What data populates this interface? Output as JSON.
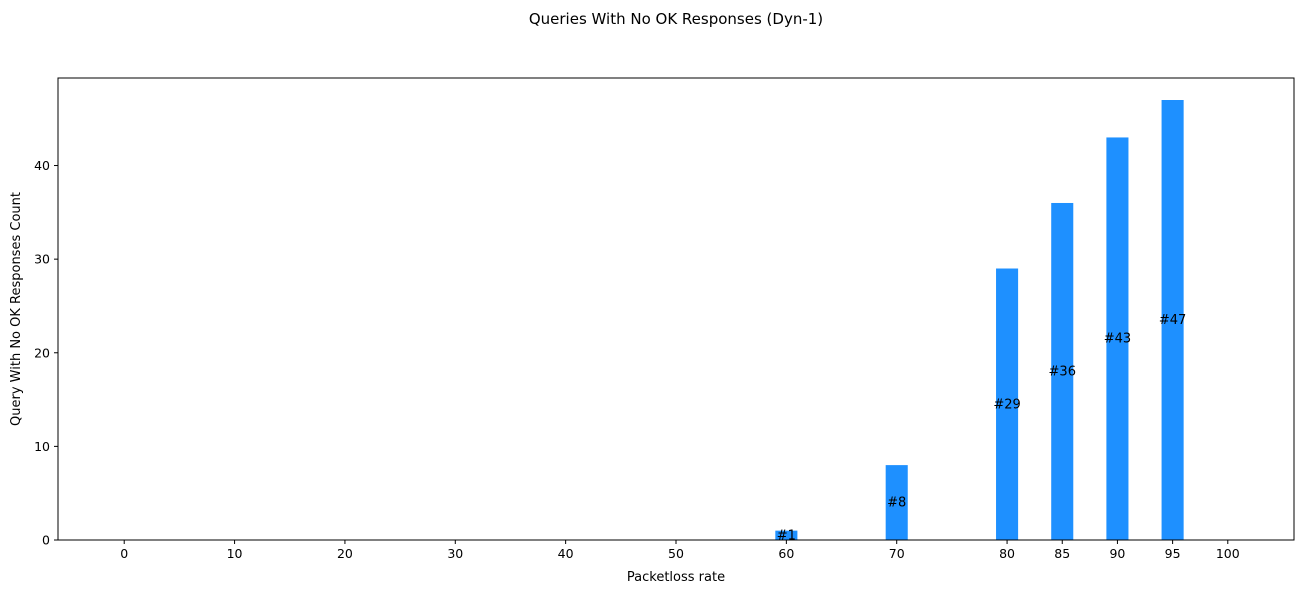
{
  "chart_data": {
    "type": "bar",
    "title": "Queries With No OK Responses (Dyn-1)",
    "xlabel": "Packetloss rate",
    "ylabel": "Query With No OK Responses Count",
    "categories": [
      "0",
      "10",
      "20",
      "30",
      "40",
      "50",
      "60",
      "70",
      "80",
      "85",
      "90",
      "95",
      "100"
    ],
    "x": [
      0,
      10,
      20,
      30,
      40,
      50,
      60,
      70,
      80,
      85,
      90,
      95,
      100
    ],
    "values": [
      0,
      0,
      0,
      0,
      0,
      0,
      1,
      8,
      29,
      36,
      43,
      47,
      0
    ],
    "bar_labels": [
      "",
      "",
      "",
      "",
      "",
      "",
      "#1",
      "#8",
      "#29",
      "#36",
      "#43",
      "#47",
      ""
    ],
    "bar_width": 2,
    "xlim": [
      -6,
      106
    ],
    "ylim": [
      0,
      49.35
    ],
    "yticks": [
      0,
      10,
      20,
      30,
      40
    ],
    "grid": false,
    "legend": "none",
    "bar_color": "#1e90ff"
  }
}
